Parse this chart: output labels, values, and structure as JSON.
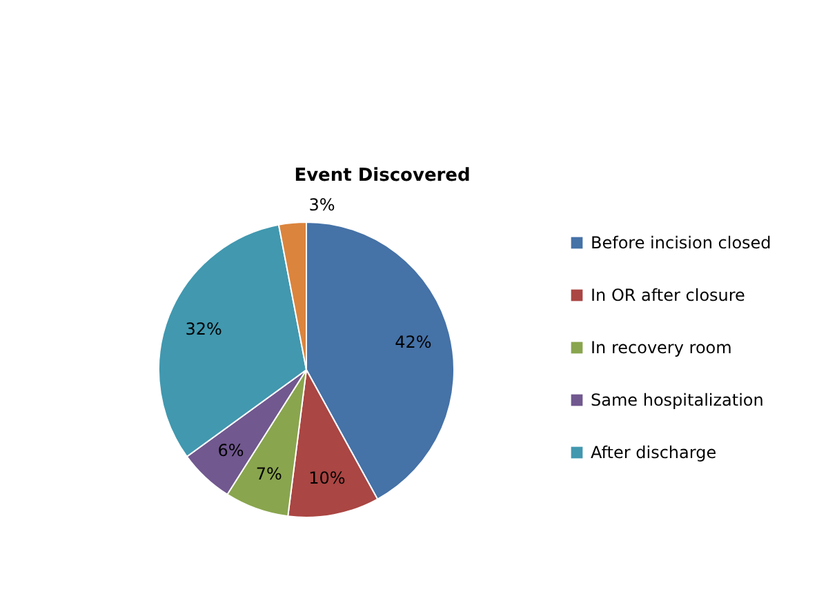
{
  "chart_data": {
    "type": "pie",
    "title": "Event Discovered",
    "categories": [
      "Before incision closed",
      "In OR after closure",
      "In recovery room",
      "Same hospitalization",
      "After discharge",
      null
    ],
    "values": [
      42,
      10,
      7,
      6,
      32,
      3
    ],
    "colors": [
      "#4572a7",
      "#aa4643",
      "#89a54e",
      "#71588f",
      "#4198af",
      "#db843d"
    ],
    "value_labels": [
      "42%",
      "10%",
      "7%",
      "6%",
      "32%",
      "3%"
    ],
    "legend": "right"
  }
}
